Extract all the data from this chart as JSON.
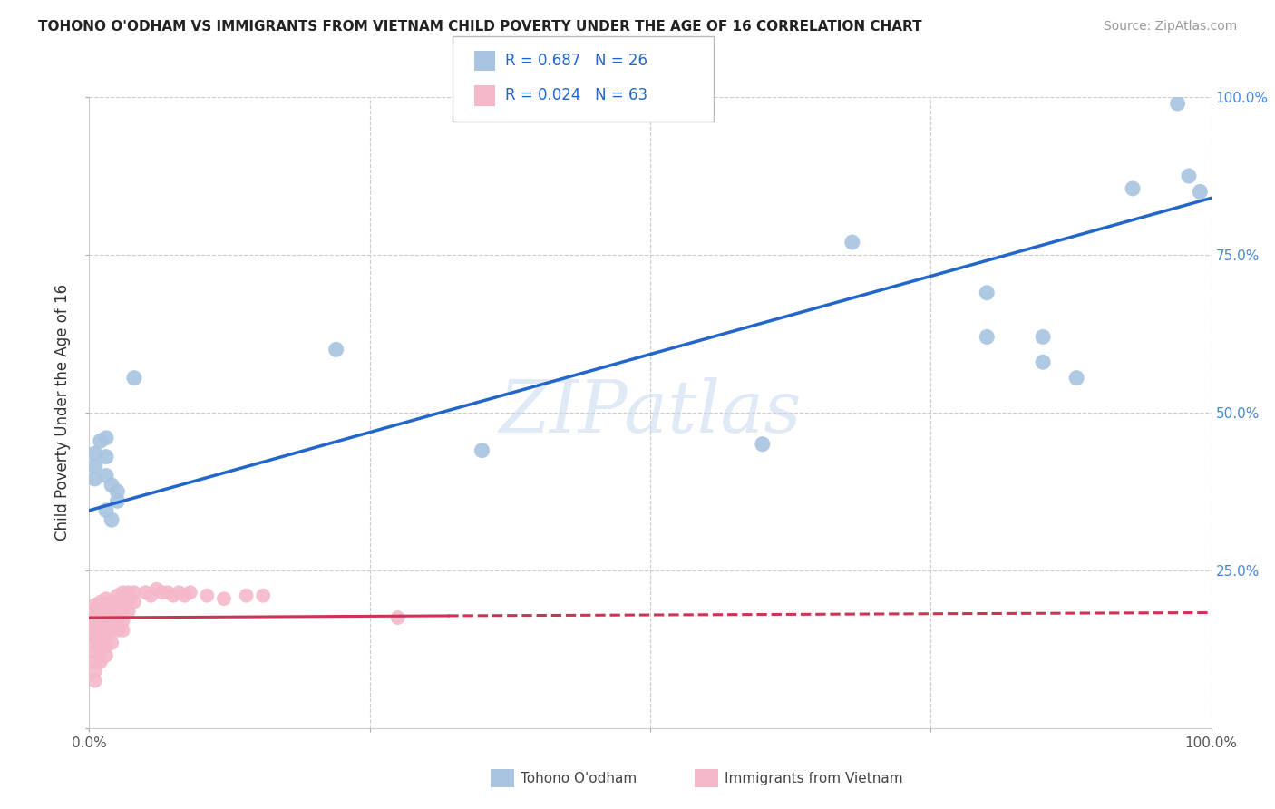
{
  "title": "TOHONO O'ODHAM VS IMMIGRANTS FROM VIETNAM CHILD POVERTY UNDER THE AGE OF 16 CORRELATION CHART",
  "source": "Source: ZipAtlas.com",
  "ylabel": "Child Poverty Under the Age of 16",
  "xlim": [
    0,
    1.0
  ],
  "ylim": [
    0,
    1.0
  ],
  "blue_R": "R = 0.687",
  "blue_N": "N = 26",
  "pink_R": "R = 0.024",
  "pink_N": "N = 63",
  "blue_label": "Tohono O'odham",
  "pink_label": "Immigrants from Vietnam",
  "blue_color": "#a8c4e0",
  "pink_color": "#f4b8c8",
  "blue_line_color": "#2266cc",
  "pink_line_color": "#cc3355",
  "watermark": "ZIPatlas",
  "blue_scatter": [
    [
      0.005,
      0.435
    ],
    [
      0.005,
      0.415
    ],
    [
      0.005,
      0.395
    ],
    [
      0.01,
      0.455
    ],
    [
      0.015,
      0.46
    ],
    [
      0.015,
      0.43
    ],
    [
      0.015,
      0.4
    ],
    [
      0.02,
      0.385
    ],
    [
      0.015,
      0.345
    ],
    [
      0.02,
      0.33
    ],
    [
      0.025,
      0.375
    ],
    [
      0.025,
      0.36
    ],
    [
      0.04,
      0.555
    ],
    [
      0.22,
      0.6
    ],
    [
      0.35,
      0.44
    ],
    [
      0.6,
      0.45
    ],
    [
      0.68,
      0.77
    ],
    [
      0.8,
      0.62
    ],
    [
      0.8,
      0.69
    ],
    [
      0.85,
      0.58
    ],
    [
      0.85,
      0.62
    ],
    [
      0.88,
      0.555
    ],
    [
      0.93,
      0.855
    ],
    [
      0.97,
      0.99
    ],
    [
      0.98,
      0.875
    ],
    [
      0.99,
      0.85
    ]
  ],
  "pink_scatter": [
    [
      0.005,
      0.195
    ],
    [
      0.005,
      0.185
    ],
    [
      0.005,
      0.175
    ],
    [
      0.005,
      0.165
    ],
    [
      0.005,
      0.155
    ],
    [
      0.005,
      0.145
    ],
    [
      0.005,
      0.135
    ],
    [
      0.005,
      0.12
    ],
    [
      0.005,
      0.105
    ],
    [
      0.005,
      0.09
    ],
    [
      0.005,
      0.075
    ],
    [
      0.01,
      0.2
    ],
    [
      0.01,
      0.19
    ],
    [
      0.01,
      0.18
    ],
    [
      0.01,
      0.17
    ],
    [
      0.01,
      0.16
    ],
    [
      0.01,
      0.15
    ],
    [
      0.01,
      0.135
    ],
    [
      0.01,
      0.12
    ],
    [
      0.01,
      0.105
    ],
    [
      0.015,
      0.205
    ],
    [
      0.015,
      0.195
    ],
    [
      0.015,
      0.185
    ],
    [
      0.015,
      0.175
    ],
    [
      0.015,
      0.16
    ],
    [
      0.015,
      0.145
    ],
    [
      0.015,
      0.13
    ],
    [
      0.015,
      0.115
    ],
    [
      0.02,
      0.2
    ],
    [
      0.02,
      0.19
    ],
    [
      0.02,
      0.18
    ],
    [
      0.02,
      0.17
    ],
    [
      0.02,
      0.155
    ],
    [
      0.02,
      0.135
    ],
    [
      0.025,
      0.21
    ],
    [
      0.025,
      0.195
    ],
    [
      0.025,
      0.185
    ],
    [
      0.025,
      0.17
    ],
    [
      0.025,
      0.155
    ],
    [
      0.03,
      0.215
    ],
    [
      0.03,
      0.2
    ],
    [
      0.03,
      0.185
    ],
    [
      0.03,
      0.17
    ],
    [
      0.03,
      0.155
    ],
    [
      0.035,
      0.215
    ],
    [
      0.035,
      0.2
    ],
    [
      0.035,
      0.185
    ],
    [
      0.04,
      0.215
    ],
    [
      0.04,
      0.2
    ],
    [
      0.05,
      0.215
    ],
    [
      0.055,
      0.21
    ],
    [
      0.06,
      0.22
    ],
    [
      0.065,
      0.215
    ],
    [
      0.07,
      0.215
    ],
    [
      0.075,
      0.21
    ],
    [
      0.08,
      0.215
    ],
    [
      0.085,
      0.21
    ],
    [
      0.09,
      0.215
    ],
    [
      0.105,
      0.21
    ],
    [
      0.12,
      0.205
    ],
    [
      0.14,
      0.21
    ],
    [
      0.155,
      0.21
    ],
    [
      0.275,
      0.175
    ]
  ],
  "blue_trendline": [
    [
      0.0,
      0.345
    ],
    [
      1.0,
      0.84
    ]
  ],
  "pink_trendline_solid": [
    [
      0.0,
      0.175
    ],
    [
      0.32,
      0.178
    ]
  ],
  "pink_trendline_dashed": [
    [
      0.32,
      0.178
    ],
    [
      1.0,
      0.183
    ]
  ]
}
